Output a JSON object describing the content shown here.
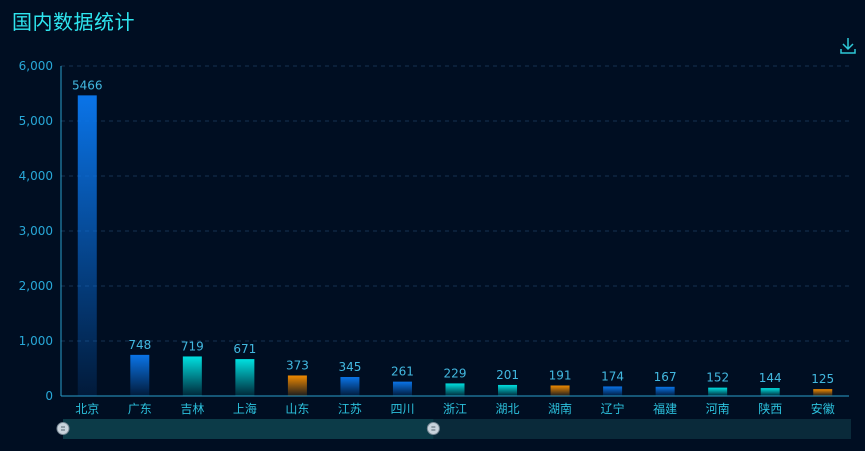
{
  "header": {
    "title": "国内数据统计"
  },
  "toolbar": {
    "download_icon": "download-icon"
  },
  "colors": {
    "background": "#000e22",
    "axis": "#2a9fc9",
    "grid": "#163252",
    "blue_top": "#0a74e8",
    "cyan_top": "#00e0e0",
    "orange_top": "#f08a00",
    "slider_track": "#0a2a3a",
    "slider_fill": "#0c3b48"
  },
  "chart_data": {
    "type": "bar",
    "title": "国内数据统计",
    "xlabel": "",
    "ylabel": "",
    "ylim": [
      0,
      6000
    ],
    "yticks": [
      "0",
      "1,000",
      "2,000",
      "3,000",
      "4,000",
      "5,000",
      "6,000"
    ],
    "grid": true,
    "categories": [
      "北京",
      "广东",
      "吉林",
      "上海",
      "山东",
      "江苏",
      "四川",
      "浙江",
      "湖北",
      "湖南",
      "辽宁",
      "福建",
      "河南",
      "陕西",
      "安徽"
    ],
    "values": [
      5466,
      748,
      719,
      671,
      373,
      345,
      261,
      229,
      201,
      191,
      174,
      167,
      152,
      144,
      125
    ],
    "bar_colors": [
      "blue",
      "blue",
      "cyan",
      "cyan",
      "orange",
      "blue",
      "blue",
      "cyan",
      "cyan",
      "orange",
      "blue",
      "blue",
      "cyan",
      "cyan",
      "orange"
    ],
    "data_zoom": {
      "start": 0,
      "end": 0.47
    }
  }
}
